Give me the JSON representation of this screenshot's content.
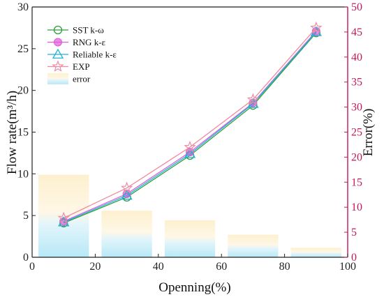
{
  "chart_data": {
    "type": "line",
    "xlabel": "Openning(%)",
    "ylabel": "Flow rate(m³/h)",
    "y2label": "Error(%)",
    "xlim": [
      0,
      100
    ],
    "ylim": [
      0,
      30
    ],
    "y2lim": [
      0,
      50
    ],
    "xticks": [
      0,
      20,
      40,
      60,
      80,
      100
    ],
    "yticks": [
      0,
      5,
      10,
      15,
      20,
      25,
      30
    ],
    "y2ticks": [
      0,
      5,
      10,
      15,
      20,
      25,
      30,
      35,
      40,
      45,
      50
    ],
    "x": [
      10,
      30,
      50,
      70,
      90
    ],
    "series": [
      {
        "name": "SST k-ω",
        "values": [
          4.1,
          7.2,
          12.2,
          18.2,
          26.9
        ],
        "color": "#2e9e3a",
        "marker": "circle"
      },
      {
        "name": "RNG k-ε",
        "values": [
          4.3,
          7.6,
          12.6,
          18.5,
          27.1
        ],
        "color": "#e05ad8",
        "marker": "filled-circle"
      },
      {
        "name": "Reliable k-ε",
        "values": [
          4.2,
          7.4,
          12.4,
          18.4,
          27.0
        ],
        "color": "#1fb2d9",
        "marker": "triangle"
      },
      {
        "name": "EXP",
        "values": [
          4.7,
          8.3,
          13.2,
          18.9,
          27.5
        ],
        "color": "#f08aa2",
        "marker": "star"
      }
    ],
    "error_bars": {
      "name": "error",
      "x": [
        10,
        30,
        50,
        70,
        90
      ],
      "values": [
        16.5,
        9.3,
        7.4,
        4.5,
        1.9
      ],
      "width": 16
    },
    "legend": {
      "placement": "top-left"
    },
    "grid": false
  }
}
